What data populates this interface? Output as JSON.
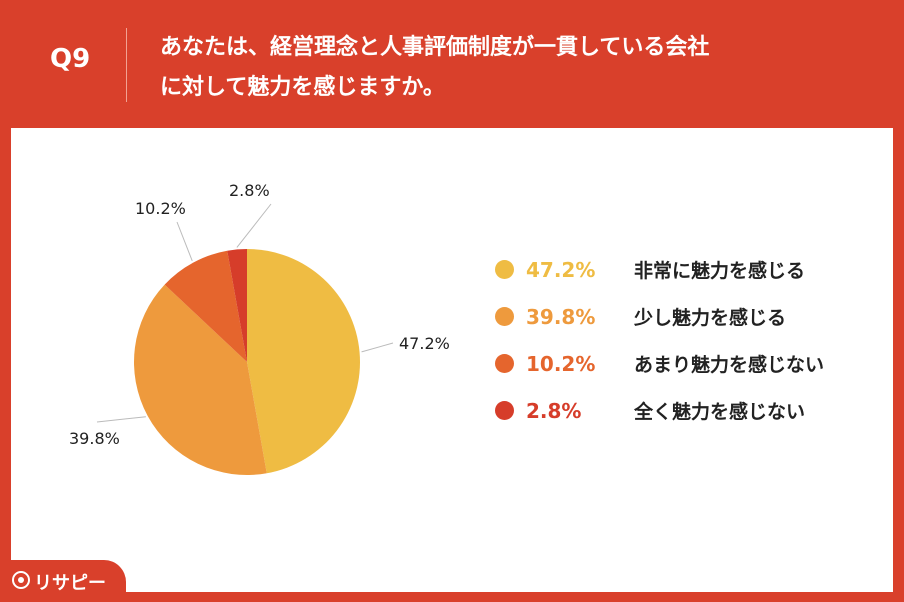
{
  "header": {
    "question_number": "Q9",
    "title_lines": [
      "あなたは、経営理念と人事評価制度が一貫している会社",
      "に対して魅力を感じますか。"
    ]
  },
  "chart_data": {
    "type": "pie",
    "unit": "%",
    "slices": [
      {
        "label": "非常に魅力を感じる",
        "value": 47.2,
        "value_text": "47.2%",
        "color": "#efbc43"
      },
      {
        "label": "少し魅力を感じる",
        "value": 39.8,
        "value_text": "39.8%",
        "color": "#ee9a3d"
      },
      {
        "label": "あまり魅力を感じない",
        "value": 10.2,
        "value_text": "10.2%",
        "color": "#e5652d"
      },
      {
        "label": "全く魅力を感じない",
        "value": 2.8,
        "value_text": "2.8%",
        "color": "#d63d2a"
      }
    ],
    "legend_placement": "right"
  },
  "brand": {
    "logo_text": "リサピー"
  }
}
